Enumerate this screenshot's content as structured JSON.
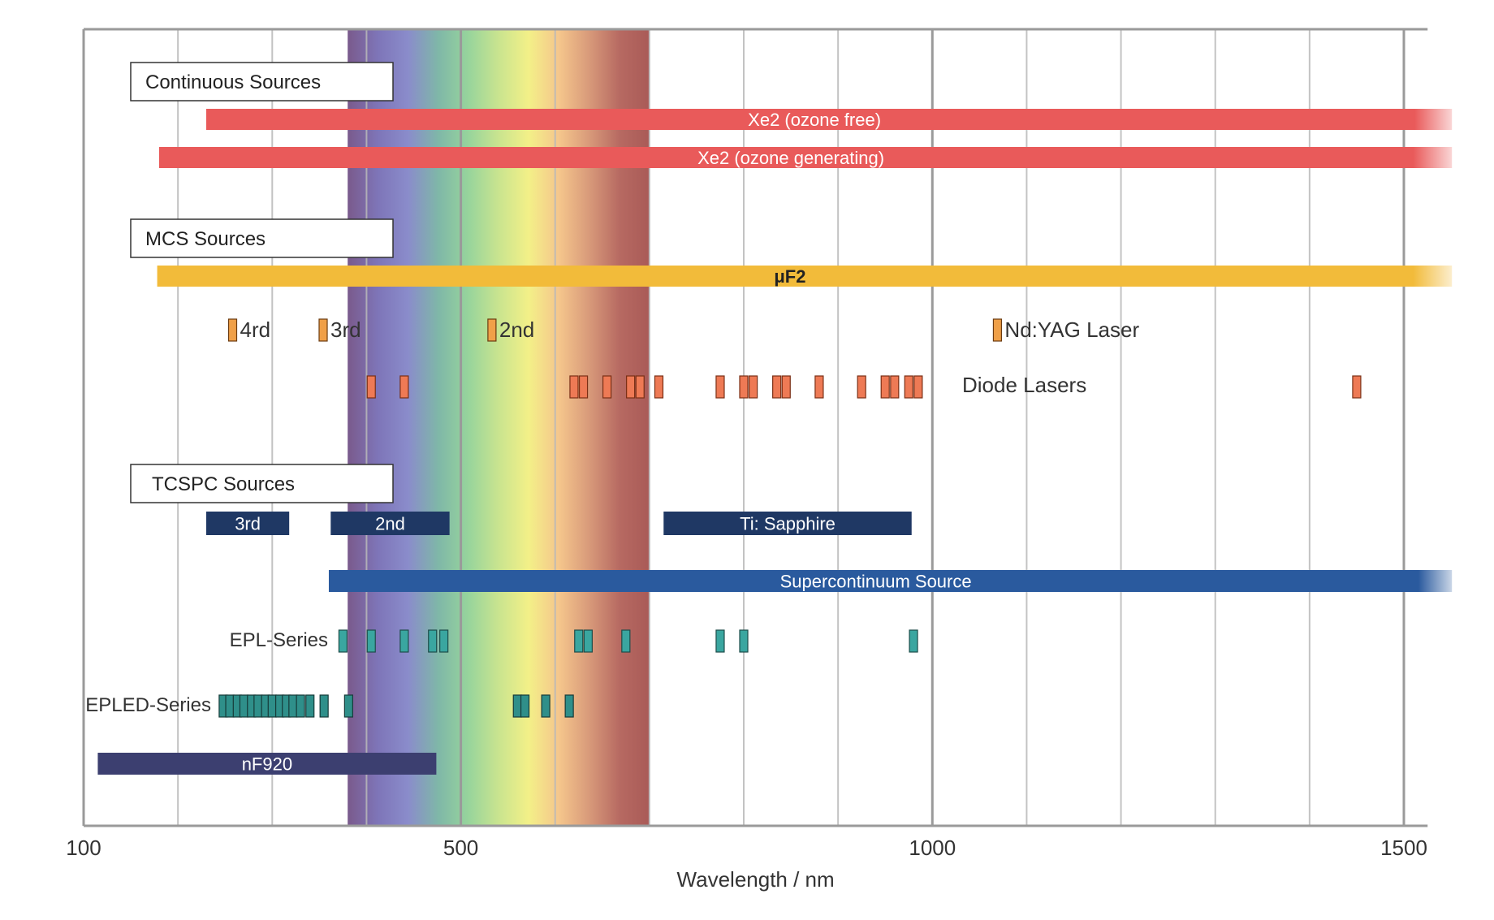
{
  "chart_data": {
    "type": "range-bar",
    "title": "",
    "xlabel": "Wavelength / nm",
    "ylabel": "",
    "xlim": [
      100,
      1520
    ],
    "xticks": [
      100,
      500,
      1000,
      1500
    ],
    "x_tick_labels": [
      "100",
      "500",
      "1000",
      "1500"
    ],
    "minor_gridlines": [
      200,
      300,
      400,
      600,
      700,
      800,
      900,
      1100,
      1200,
      1300,
      1400
    ],
    "grid": true,
    "background_spectrum": {
      "range": [
        380,
        700
      ],
      "colors": [
        "#7a5a8c",
        "#7e75b8",
        "#8a8ccb",
        "#7fb7a8",
        "#97d49c",
        "#c9e48f",
        "#f3f088",
        "#f5c68c",
        "#d89a7a",
        "#b76a62",
        "#a95a57"
      ]
    },
    "sections": [
      {
        "label": "Continuous Sources",
        "bars": [
          {
            "name": "Xe2 (ozone free)",
            "start": 230,
            "end": 1520,
            "color": "#e95a5a",
            "text_color": "#ffffff",
            "fade_end": true
          },
          {
            "name": "Xe2 (ozone generating)",
            "start": 180,
            "end": 1520,
            "color": "#e95a5a",
            "text_color": "#ffffff",
            "fade_end": true
          }
        ]
      },
      {
        "label": "MCS Sources",
        "bars": [
          {
            "name": "μF2",
            "start": 178,
            "end": 1520,
            "color": "#f2bb3a",
            "text_color": "#222222",
            "fade_end": true
          }
        ],
        "markers": [
          {
            "label": "4rd",
            "x": 258,
            "color": "#f0a048"
          },
          {
            "label": "3rd",
            "x": 354,
            "color": "#f0a048"
          },
          {
            "label": "2nd",
            "x": 533,
            "color": "#f0a048"
          },
          {
            "label": "Nd:YAG Laser",
            "x": 1069,
            "color": "#f0a048"
          }
        ],
        "diode_lasers": {
          "label": "Diode Lasers",
          "color": "#ee7a55",
          "wavelengths": [
            405,
            440,
            620,
            630,
            655,
            680,
            690,
            710,
            775,
            800,
            810,
            835,
            845,
            880,
            925,
            950,
            960,
            975,
            985,
            1450
          ]
        }
      },
      {
        "label": "TCSPC Sources",
        "bars": [
          {
            "name": "3rd",
            "start": 230,
            "end": 318,
            "color": "#1f3864",
            "text_color": "#ffffff",
            "fade_end": false
          },
          {
            "name": "2nd",
            "start": 362,
            "end": 488,
            "color": "#1f3864",
            "text_color": "#ffffff",
            "fade_end": false
          },
          {
            "name": "Ti: Sapphire",
            "start": 715,
            "end": 978,
            "color": "#1f3864",
            "text_color": "#ffffff",
            "fade_end": false
          },
          {
            "name": "Supercontinuum Source",
            "start": 360,
            "end": 1520,
            "color": "#2a5a9e",
            "text_color": "#ffffff",
            "fade_end": true
          },
          {
            "name": "nF920",
            "start": 115,
            "end": 474,
            "color": "#3c3f70",
            "text_color": "#ffffff",
            "fade_end": false
          }
        ],
        "epl_series": {
          "label": "EPL-Series",
          "color": "#3aa6a0",
          "wavelengths": [
            375,
            405,
            440,
            470,
            482,
            625,
            635,
            675,
            775,
            800,
            980
          ]
        },
        "epled_series": {
          "label": "EPLED-Series",
          "color": "#2f8f8a",
          "wavelengths": [
            248,
            255,
            263,
            270,
            278,
            285,
            293,
            300,
            308,
            315,
            322,
            330,
            340,
            355,
            381,
            560,
            568,
            590,
            615
          ]
        }
      }
    ]
  }
}
